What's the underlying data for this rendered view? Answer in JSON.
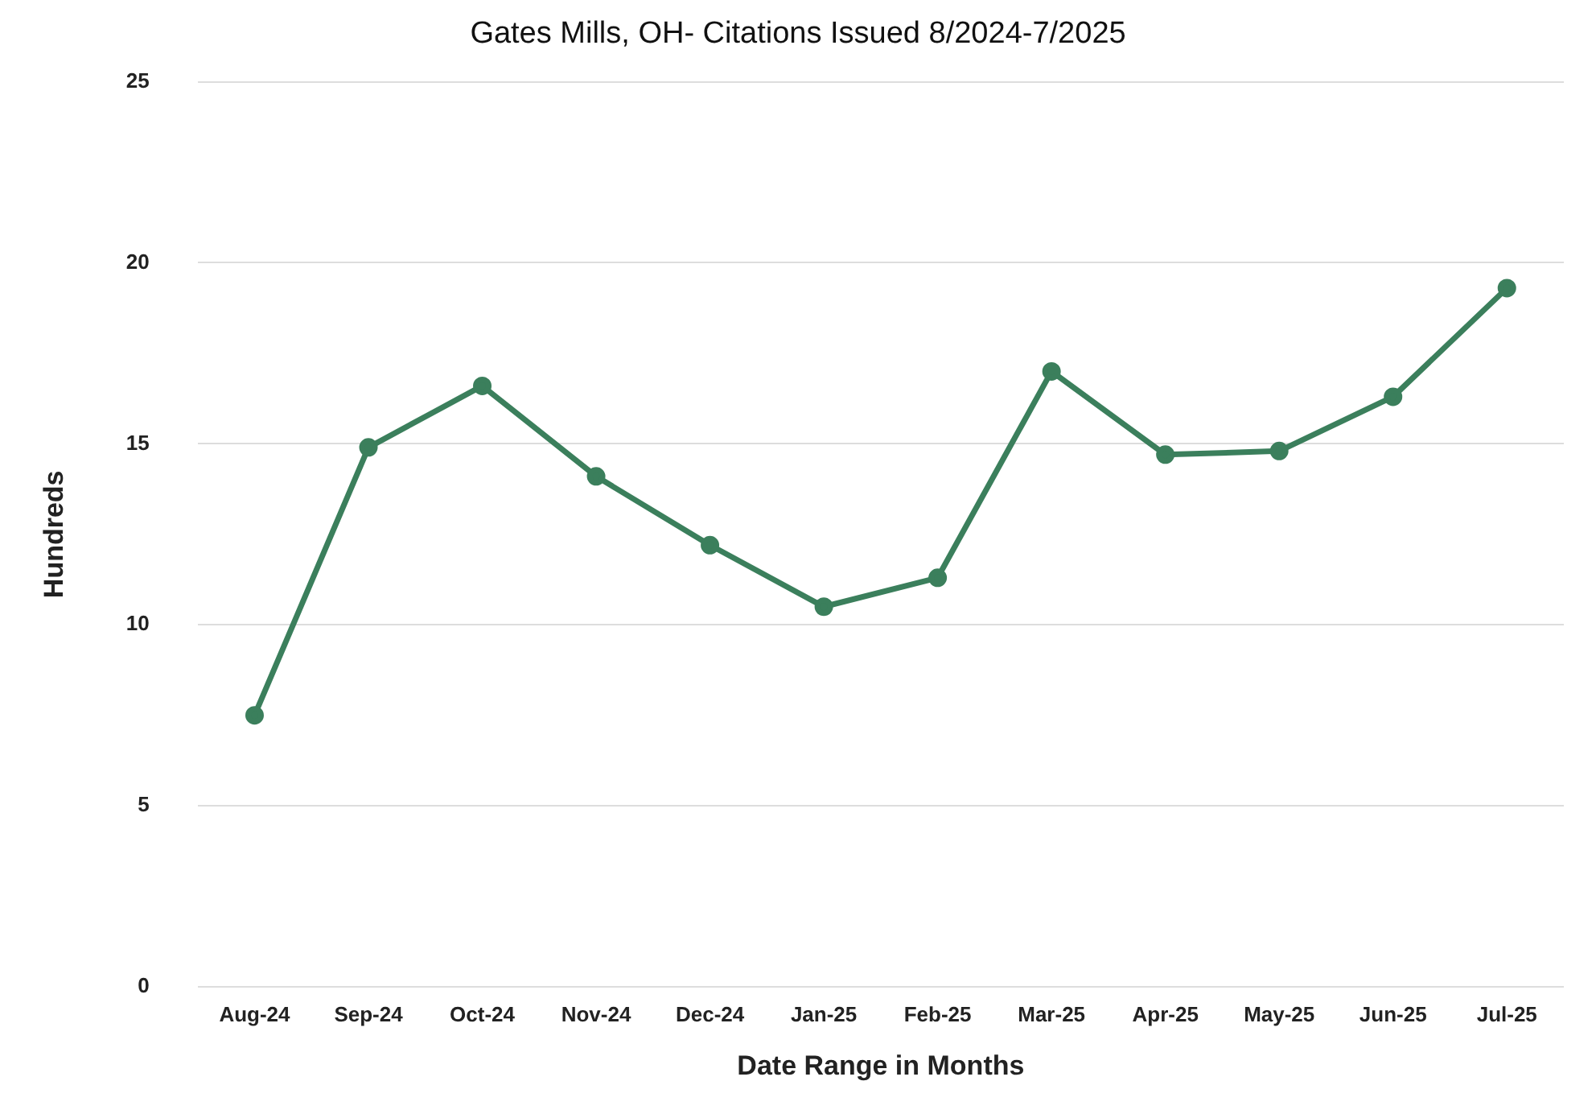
{
  "chart_data": {
    "type": "line",
    "title": "Gates Mills, OH- Citations Issued 8/2024-7/2025",
    "xlabel": "Date Range in Months",
    "ylabel": "Hundreds",
    "categories": [
      "Aug-24",
      "Sep-24",
      "Oct-24",
      "Nov-24",
      "Dec-24",
      "Jan-25",
      "Feb-25",
      "Mar-25",
      "Apr-25",
      "May-25",
      "Jun-25",
      "Jul-25"
    ],
    "series": [
      {
        "color": "#3b7f5c",
        "values": [
          7.5,
          14.9,
          16.6,
          14.1,
          12.2,
          10.5,
          11.3,
          17.0,
          14.7,
          14.8,
          16.3,
          19.3
        ]
      }
    ],
    "ylim": [
      0,
      25
    ],
    "yticks": [
      0,
      5,
      10,
      15,
      20,
      25
    ],
    "grid": "y",
    "legend": false,
    "marker": "circle",
    "line_style": "solid"
  }
}
